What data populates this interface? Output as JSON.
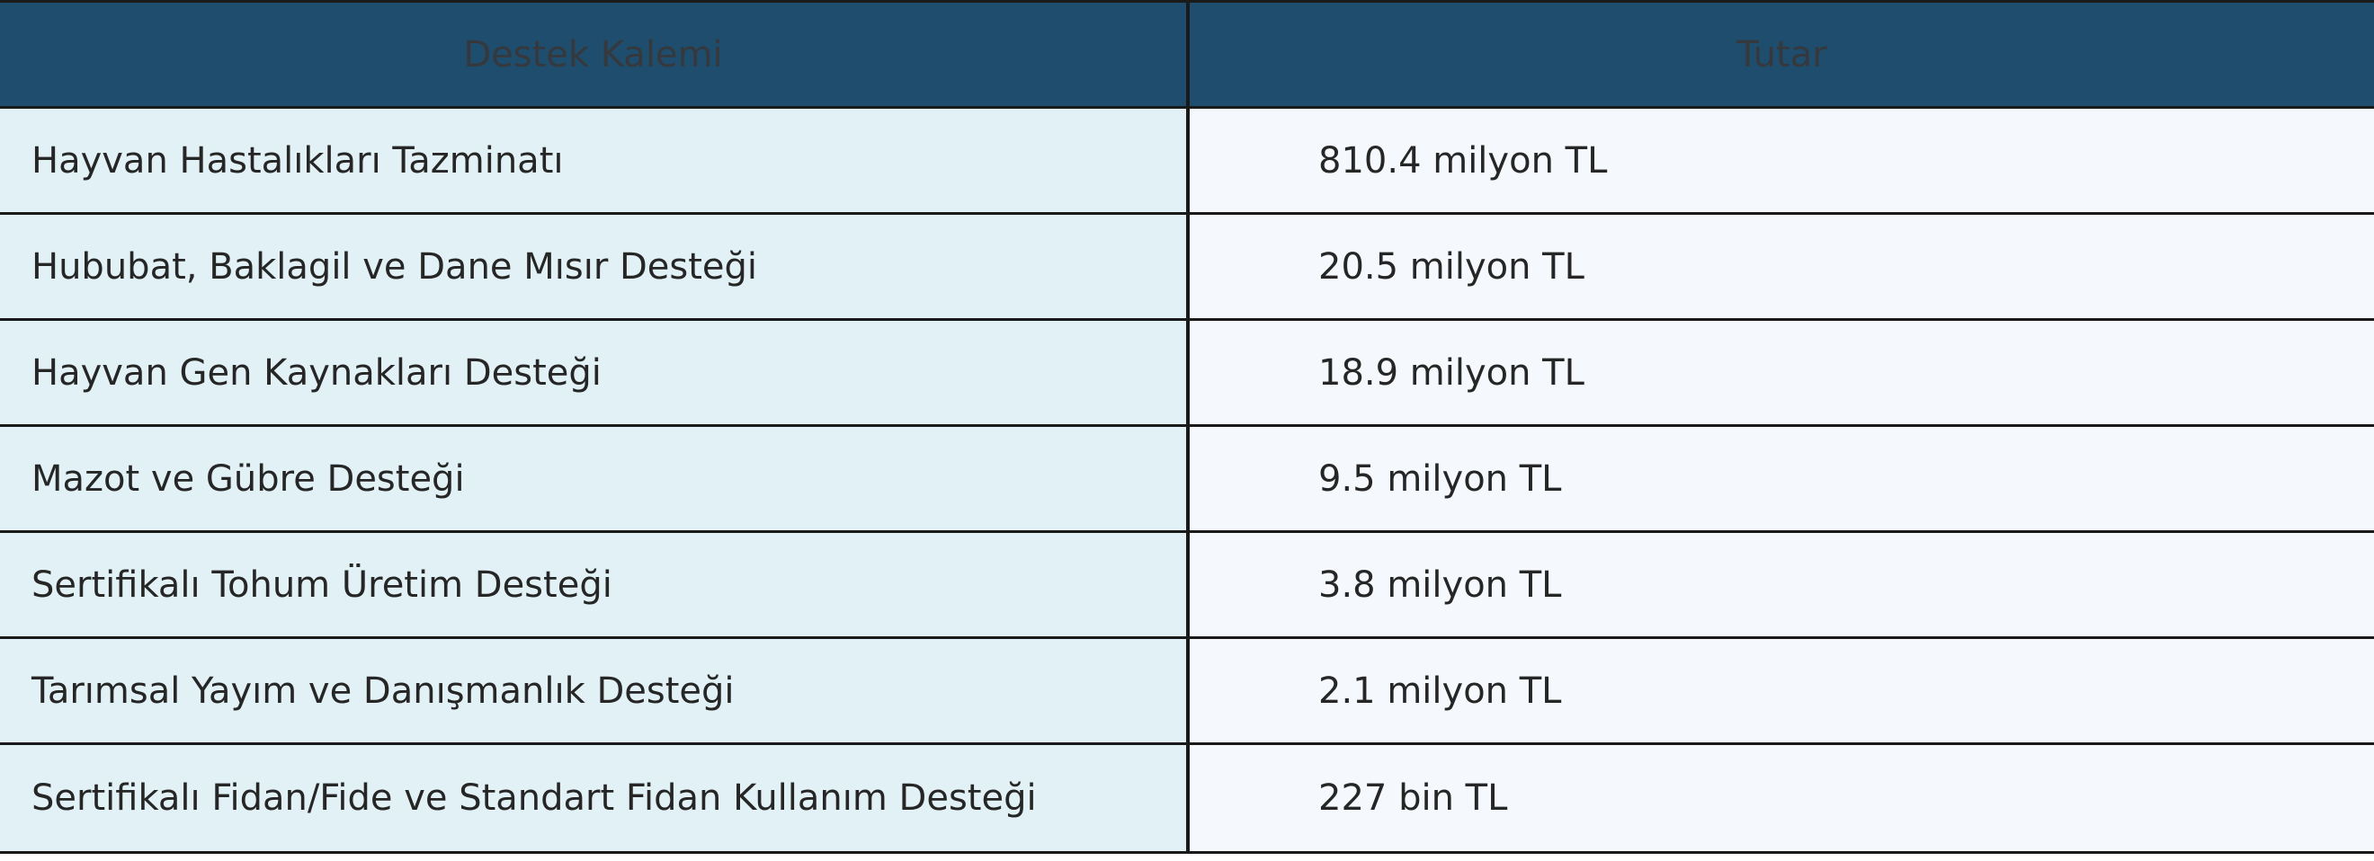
{
  "table": {
    "headers": [
      "Destek Kalemi",
      "Tutar"
    ],
    "rows": [
      {
        "item": "Hayvan Hastalıkları Tazminatı",
        "amount": "810.4 milyon TL"
      },
      {
        "item": "Hububat, Baklagil ve Dane Mısır Desteği",
        "amount": "20.5 milyon TL"
      },
      {
        "item": "Hayvan Gen Kaynakları Desteği",
        "amount": "18.9 milyon TL"
      },
      {
        "item": "Mazot ve Gübre Desteği",
        "amount": "9.5 milyon TL"
      },
      {
        "item": "Sertifikalı Tohum Üretim Desteği",
        "amount": "3.8 milyon TL"
      },
      {
        "item": "Tarımsal Yayım ve Danışmanlık Desteği",
        "amount": "2.1 milyon TL"
      },
      {
        "item": "Sertifikalı Fidan/Fide ve Standart Fidan Kullanım Desteği",
        "amount": "227 bin TL"
      }
    ]
  },
  "colors": {
    "header_bg": "#1f4d6d",
    "header_text": "#35393d",
    "first_col_bg": "#e1f1f6",
    "second_col_bg": "#f5f9fd",
    "border": "#1a1a1a"
  }
}
